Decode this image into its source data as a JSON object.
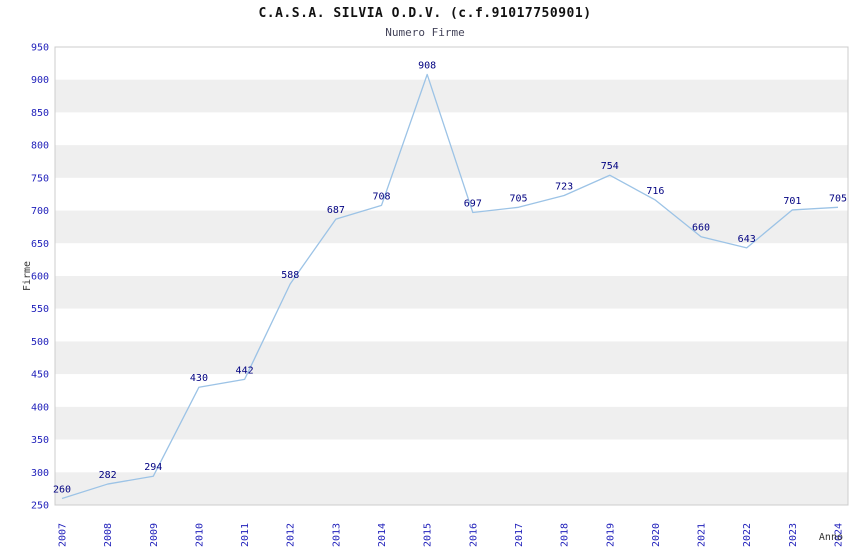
{
  "title": "C.A.S.A. SILVIA O.D.V. (c.f.91017750901)",
  "subtitle": "Numero Firme",
  "chart_data": {
    "type": "line",
    "x": [
      2007,
      2008,
      2009,
      2010,
      2011,
      2012,
      2013,
      2014,
      2015,
      2016,
      2017,
      2018,
      2019,
      2020,
      2021,
      2022,
      2023,
      2024
    ],
    "values": [
      260,
      282,
      294,
      430,
      442,
      588,
      687,
      708,
      908,
      697,
      705,
      723,
      754,
      716,
      660,
      643,
      701,
      705
    ],
    "title": "C.A.S.A. SILVIA O.D.V. (c.f.91017750901)",
    "subtitle": "Numero Firme",
    "xlabel": "Anno",
    "ylabel": "Firme",
    "ylim": [
      250,
      950
    ],
    "ytick_step": 50,
    "grid": "horizontal-bands",
    "legend": "none",
    "line_color": "#9cc3e6",
    "value_label_color": "#000080",
    "tick_label_color": "#2222bb",
    "band_colors": [
      "#ffffff",
      "#efefef"
    ],
    "plot_border_color": "#cccccc"
  }
}
